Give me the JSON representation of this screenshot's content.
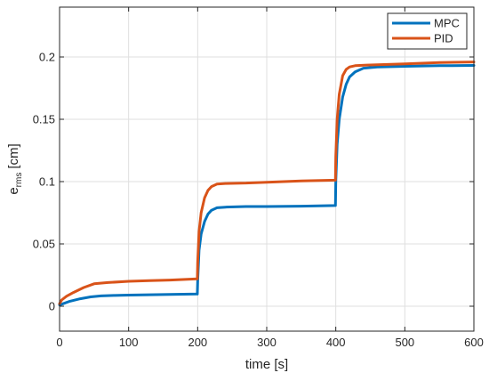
{
  "chart_data": {
    "type": "line",
    "xlabel": "time [s]",
    "ylabel": "e",
    "ylabel_sub": "rms",
    "ylabel_unit": "[cm]",
    "xlim": [
      0,
      600
    ],
    "ylim": [
      -0.02,
      0.24
    ],
    "xticks": [
      0,
      100,
      200,
      300,
      400,
      500,
      600
    ],
    "yticks": [
      0,
      0.05,
      0.1,
      0.15,
      0.2
    ],
    "ytick_labels": [
      "0",
      "0.05",
      "0.1",
      "0.15",
      "0.2"
    ],
    "grid": true,
    "legend_position": "top-right",
    "series": [
      {
        "name": "MPC",
        "color": "#0072BD",
        "points": [
          [
            0,
            0.001
          ],
          [
            5,
            0.002
          ],
          [
            15,
            0.004
          ],
          [
            30,
            0.006
          ],
          [
            45,
            0.0075
          ],
          [
            60,
            0.0083
          ],
          [
            80,
            0.0087
          ],
          [
            100,
            0.0089
          ],
          [
            130,
            0.0092
          ],
          [
            160,
            0.0095
          ],
          [
            199.5,
            0.0098
          ],
          [
            200,
            0.02
          ],
          [
            202,
            0.045
          ],
          [
            205,
            0.058
          ],
          [
            210,
            0.068
          ],
          [
            215,
            0.074
          ],
          [
            220,
            0.077
          ],
          [
            228,
            0.079
          ],
          [
            240,
            0.0795
          ],
          [
            270,
            0.08
          ],
          [
            300,
            0.08
          ],
          [
            350,
            0.0803
          ],
          [
            399.5,
            0.0808
          ],
          [
            400,
            0.1
          ],
          [
            402,
            0.13
          ],
          [
            405,
            0.15
          ],
          [
            410,
            0.168
          ],
          [
            415,
            0.178
          ],
          [
            420,
            0.184
          ],
          [
            428,
            0.188
          ],
          [
            440,
            0.191
          ],
          [
            460,
            0.192
          ],
          [
            500,
            0.1925
          ],
          [
            550,
            0.193
          ],
          [
            600,
            0.1932
          ]
        ]
      },
      {
        "name": "PID",
        "color": "#D95319",
        "points": [
          [
            0,
            0.002
          ],
          [
            3,
            0.005
          ],
          [
            10,
            0.008
          ],
          [
            20,
            0.011
          ],
          [
            35,
            0.015
          ],
          [
            50,
            0.018
          ],
          [
            70,
            0.019
          ],
          [
            100,
            0.02
          ],
          [
            130,
            0.0205
          ],
          [
            160,
            0.021
          ],
          [
            199.5,
            0.022
          ],
          [
            200,
            0.035
          ],
          [
            202,
            0.06
          ],
          [
            205,
            0.075
          ],
          [
            210,
            0.087
          ],
          [
            215,
            0.093
          ],
          [
            220,
            0.096
          ],
          [
            228,
            0.098
          ],
          [
            240,
            0.0985
          ],
          [
            270,
            0.0988
          ],
          [
            300,
            0.0995
          ],
          [
            350,
            0.1005
          ],
          [
            399.5,
            0.1012
          ],
          [
            400,
            0.12
          ],
          [
            402,
            0.15
          ],
          [
            405,
            0.17
          ],
          [
            410,
            0.185
          ],
          [
            415,
            0.19
          ],
          [
            420,
            0.192
          ],
          [
            428,
            0.193
          ],
          [
            445,
            0.1935
          ],
          [
            500,
            0.1945
          ],
          [
            550,
            0.1955
          ],
          [
            600,
            0.196
          ]
        ]
      }
    ]
  }
}
